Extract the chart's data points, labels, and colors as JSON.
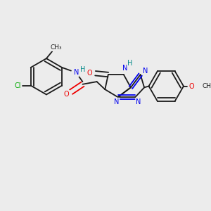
{
  "bg_color": "#ececec",
  "bond_color": "#1a1a1a",
  "atom_colors": {
    "N": "#0000ee",
    "O": "#ee0000",
    "Cl": "#00aa00",
    "C": "#1a1a1a",
    "H": "#008888"
  },
  "bond_lw": 1.3,
  "font_size": 7.0
}
